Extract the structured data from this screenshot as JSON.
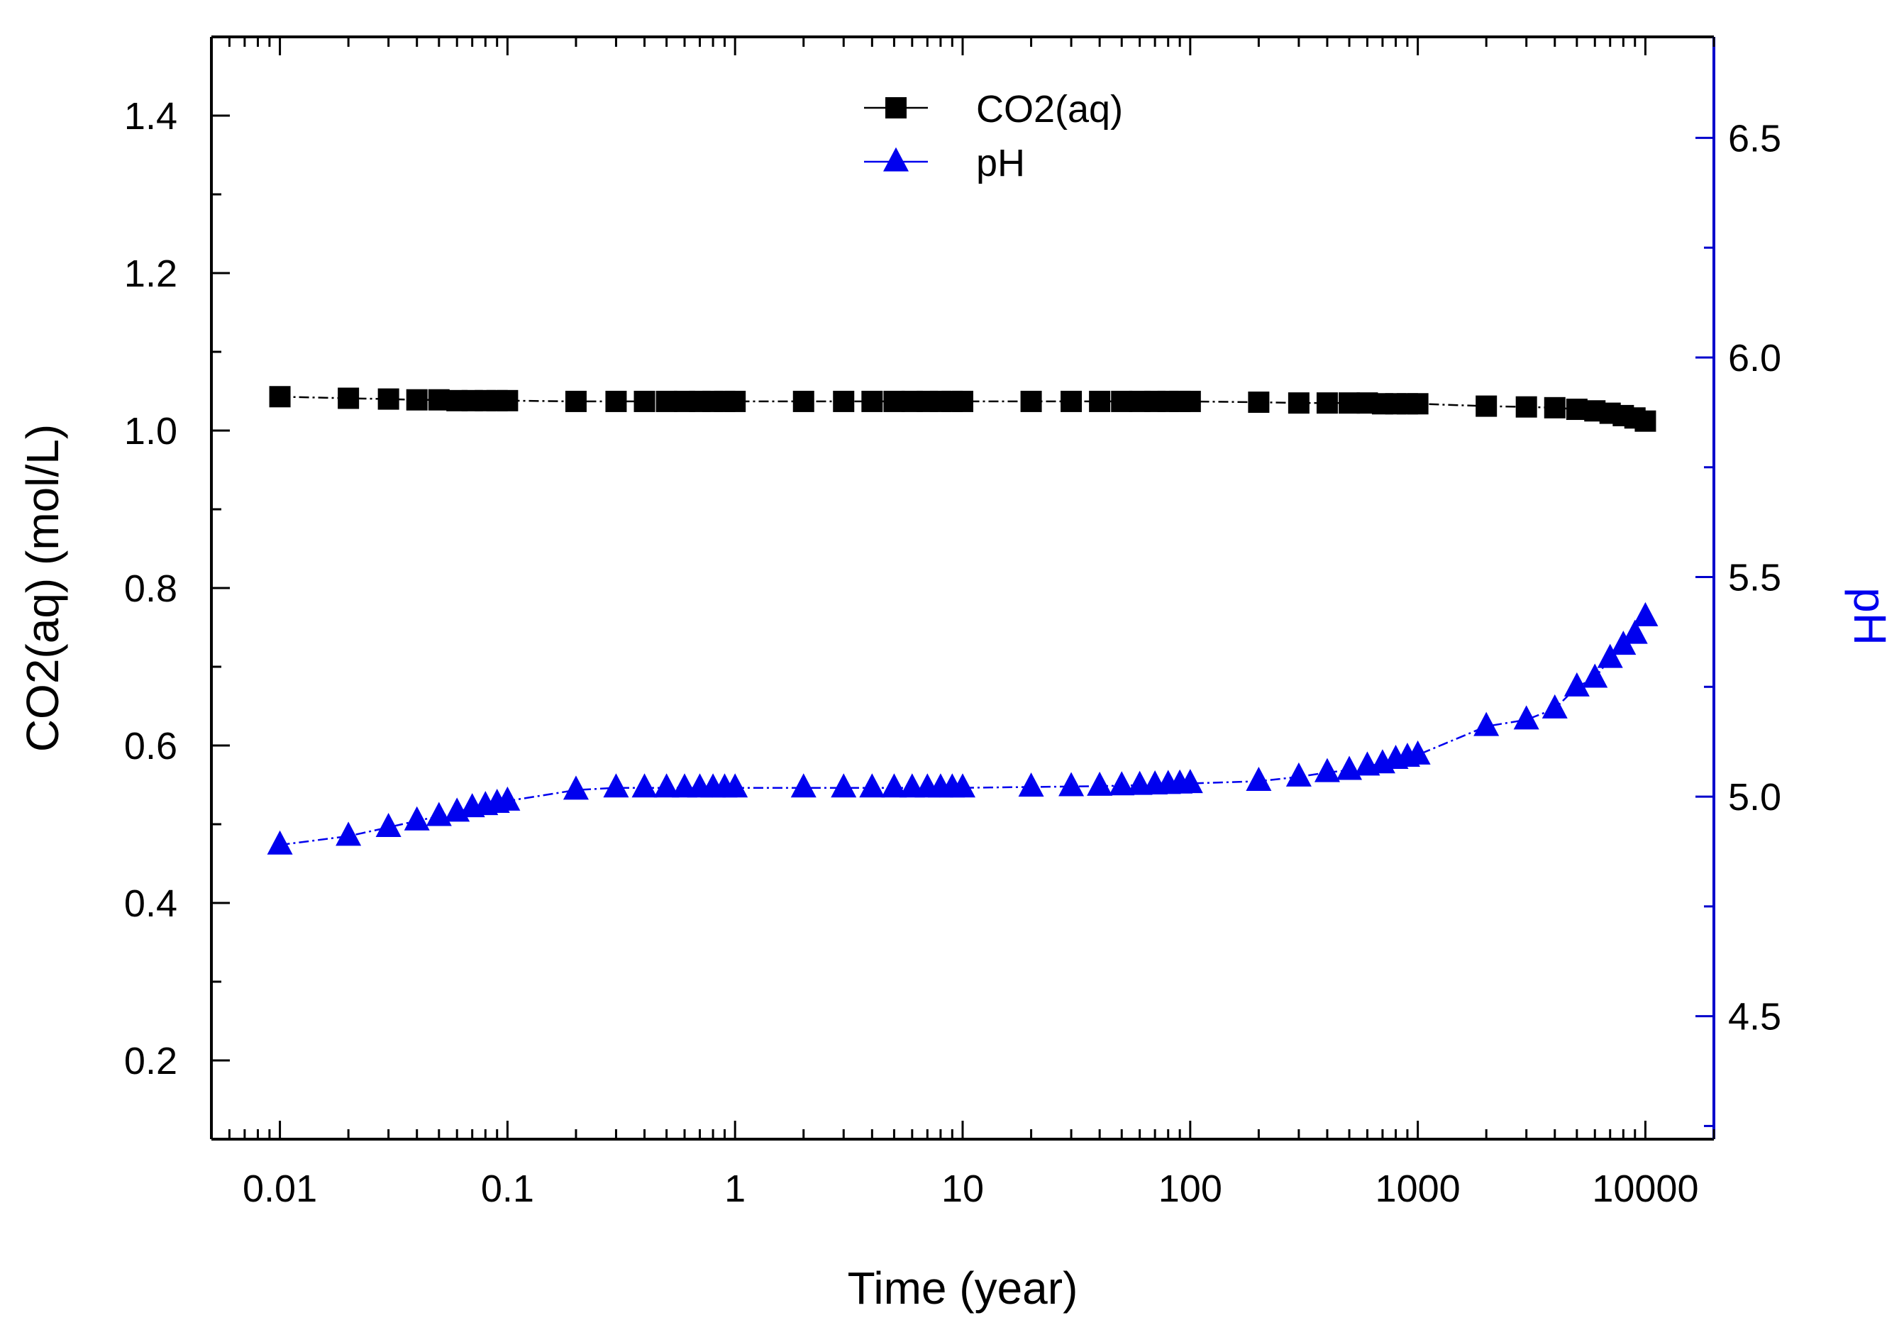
{
  "chart_data": {
    "type": "line",
    "title": "",
    "xlabel": "Time (year)",
    "ylabel": "CO2(aq) (mol/L)",
    "y2label": "pH",
    "xscale": "log",
    "xlim": [
      0.005,
      20000
    ],
    "ylim": [
      0.1,
      1.5
    ],
    "y2lim": [
      4.22,
      6.73
    ],
    "x_ticks": [
      0.01,
      0.1,
      1,
      10,
      100,
      1000,
      10000
    ],
    "x_tick_labels": [
      "0.01",
      "0.1",
      "1",
      "10",
      "100",
      "1000",
      "10000"
    ],
    "y_ticks": [
      0.2,
      0.4,
      0.6,
      0.8,
      1.0,
      1.2,
      1.4
    ],
    "y_tick_labels": [
      "0.2",
      "0.4",
      "0.6",
      "0.8",
      "1.0",
      "1.2",
      "1.4"
    ],
    "y2_ticks": [
      4.5,
      5.0,
      5.5,
      6.0,
      6.5
    ],
    "y2_tick_labels": [
      "4.5",
      "5.0",
      "5.5",
      "6.0",
      "6.5"
    ],
    "grid": false,
    "legend_position": "top-center",
    "x": [
      0.01,
      0.02,
      0.03,
      0.04,
      0.05,
      0.06,
      0.07,
      0.08,
      0.09,
      0.1,
      0.2,
      0.3,
      0.4,
      0.5,
      0.6,
      0.7,
      0.8,
      0.9,
      1,
      2,
      3,
      4,
      5,
      6,
      7,
      8,
      9,
      10,
      20,
      30,
      40,
      50,
      60,
      70,
      80,
      90,
      100,
      200,
      300,
      400,
      500,
      600,
      700,
      800,
      900,
      1000,
      2000,
      3000,
      4000,
      5000,
      6000,
      7000,
      8000,
      9000,
      10000
    ],
    "series": [
      {
        "name": "CO2(aq)",
        "axis": "left",
        "color": "#000000",
        "marker": "square",
        "values": [
          1.043,
          1.041,
          1.04,
          1.039,
          1.039,
          1.038,
          1.038,
          1.038,
          1.038,
          1.038,
          1.037,
          1.037,
          1.037,
          1.037,
          1.037,
          1.037,
          1.037,
          1.037,
          1.037,
          1.037,
          1.037,
          1.037,
          1.037,
          1.037,
          1.037,
          1.037,
          1.037,
          1.037,
          1.037,
          1.037,
          1.037,
          1.037,
          1.037,
          1.037,
          1.037,
          1.037,
          1.037,
          1.036,
          1.035,
          1.035,
          1.035,
          1.035,
          1.034,
          1.034,
          1.034,
          1.034,
          1.031,
          1.03,
          1.029,
          1.027,
          1.025,
          1.022,
          1.019,
          1.016,
          1.012
        ]
      },
      {
        "name": "pH",
        "axis": "right",
        "color": "#0000ee",
        "marker": "triangle",
        "values": [
          4.89,
          4.91,
          4.93,
          4.945,
          4.955,
          4.965,
          4.975,
          4.98,
          4.985,
          4.99,
          5.015,
          5.02,
          5.02,
          5.02,
          5.02,
          5.02,
          5.02,
          5.02,
          5.02,
          5.02,
          5.02,
          5.02,
          5.02,
          5.02,
          5.02,
          5.02,
          5.02,
          5.02,
          5.022,
          5.023,
          5.024,
          5.025,
          5.026,
          5.027,
          5.028,
          5.029,
          5.03,
          5.035,
          5.045,
          5.055,
          5.06,
          5.07,
          5.075,
          5.085,
          5.09,
          5.095,
          5.16,
          5.175,
          5.2,
          5.25,
          5.27,
          5.315,
          5.345,
          5.37,
          5.41
        ]
      }
    ]
  }
}
